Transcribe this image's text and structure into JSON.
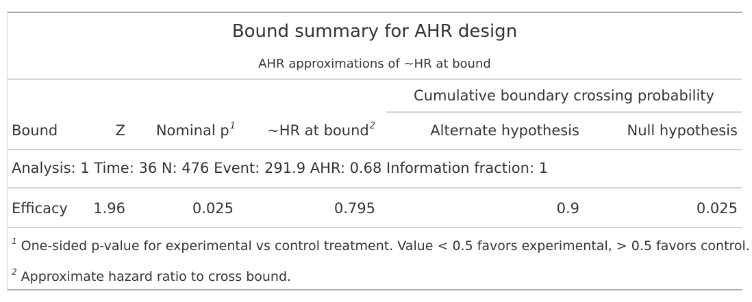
{
  "table": {
    "title": "Bound summary for AHR design",
    "subtitle": "AHR approximations of ~HR at bound",
    "spanner": "Cumulative boundary crossing probability",
    "columns": {
      "bound": "Bound",
      "z": "Z",
      "nominal_p": "Nominal p",
      "nominal_p_fn": "1",
      "hr_at_bound": "~HR at bound",
      "hr_at_bound_fn": "2",
      "alternate": "Alternate hypothesis",
      "null": "Null hypothesis"
    },
    "group_label": "Analysis: 1 Time: 36 N: 476 Event: 291.9 AHR: 0.68 Information fraction: 1",
    "rows": [
      {
        "bound": "Efficacy",
        "z": "1.96",
        "nominal_p": "0.025",
        "hr_at_bound": "0.795",
        "alternate": "0.9",
        "null": "0.025"
      }
    ],
    "footnotes": [
      {
        "mark": "1",
        "text": "One-sided p-value for experimental vs control treatment. Value < 0.5 favors experimental, > 0.5 favors control."
      },
      {
        "mark": "2",
        "text": "Approximate hazard ratio to cross bound."
      }
    ]
  }
}
